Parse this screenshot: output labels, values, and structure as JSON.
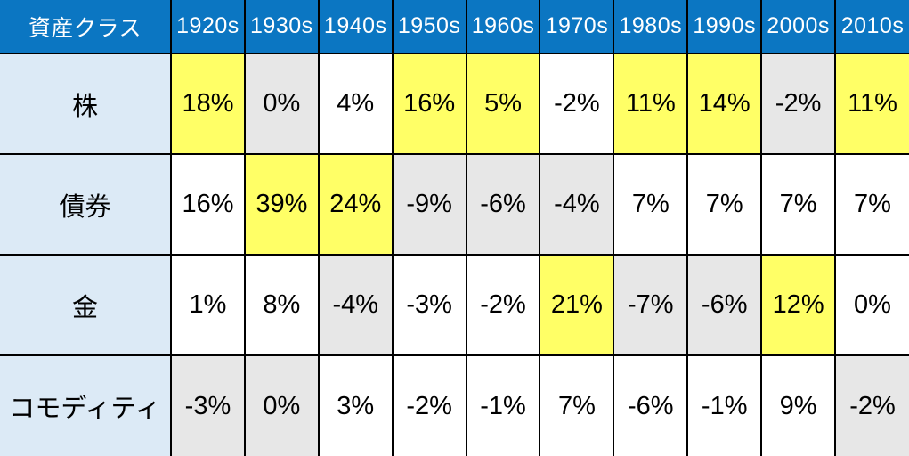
{
  "table": {
    "header": {
      "label": "資産クラス",
      "decades": [
        "1920s",
        "1930s",
        "1940s",
        "1950s",
        "1960s",
        "1970s",
        "1980s",
        "1990s",
        "2000s",
        "2010s"
      ]
    },
    "rows": [
      {
        "label": "株",
        "cells": [
          {
            "text": "18%",
            "hl": "best"
          },
          {
            "text": "0%",
            "hl": "worst"
          },
          {
            "text": "4%",
            "hl": "none"
          },
          {
            "text": "16%",
            "hl": "best"
          },
          {
            "text": "5%",
            "hl": "best"
          },
          {
            "text": "-2%",
            "hl": "none"
          },
          {
            "text": "11%",
            "hl": "best"
          },
          {
            "text": "14%",
            "hl": "best"
          },
          {
            "text": "-2%",
            "hl": "worst"
          },
          {
            "text": "11%",
            "hl": "best"
          }
        ]
      },
      {
        "label": "債券",
        "cells": [
          {
            "text": "16%",
            "hl": "none"
          },
          {
            "text": "39%",
            "hl": "best"
          },
          {
            "text": "24%",
            "hl": "best"
          },
          {
            "text": "-9%",
            "hl": "worst"
          },
          {
            "text": "-6%",
            "hl": "worst"
          },
          {
            "text": "-4%",
            "hl": "worst"
          },
          {
            "text": "7%",
            "hl": "none"
          },
          {
            "text": "7%",
            "hl": "none"
          },
          {
            "text": "7%",
            "hl": "none"
          },
          {
            "text": "7%",
            "hl": "none"
          }
        ]
      },
      {
        "label": "金",
        "cells": [
          {
            "text": "1%",
            "hl": "none"
          },
          {
            "text": "8%",
            "hl": "none"
          },
          {
            "text": "-4%",
            "hl": "worst"
          },
          {
            "text": "-3%",
            "hl": "none"
          },
          {
            "text": "-2%",
            "hl": "none"
          },
          {
            "text": "21%",
            "hl": "best"
          },
          {
            "text": "-7%",
            "hl": "worst"
          },
          {
            "text": "-6%",
            "hl": "worst"
          },
          {
            "text": "12%",
            "hl": "best"
          },
          {
            "text": "0%",
            "hl": "none"
          }
        ]
      },
      {
        "label": "コモディティ",
        "cells": [
          {
            "text": "-3%",
            "hl": "worst"
          },
          {
            "text": "0%",
            "hl": "worst"
          },
          {
            "text": "3%",
            "hl": "none"
          },
          {
            "text": "-2%",
            "hl": "none"
          },
          {
            "text": "-1%",
            "hl": "none"
          },
          {
            "text": "7%",
            "hl": "none"
          },
          {
            "text": "-6%",
            "hl": "none"
          },
          {
            "text": "-1%",
            "hl": "none"
          },
          {
            "text": "9%",
            "hl": "none"
          },
          {
            "text": "-2%",
            "hl": "worst"
          }
        ]
      }
    ]
  },
  "colors": {
    "header_bg": "#0b76c2",
    "header_text": "#ffffff",
    "row_label_bg": "#dceaf6",
    "best_bg": "#ffff66",
    "worst_bg": "#e7e7e7",
    "normal_bg": "#ffffff",
    "border": "#000000",
    "body_text": "#000000"
  },
  "chart_data": {
    "type": "table",
    "title": "",
    "row_header_label": "資産クラス",
    "categories": [
      "1920s",
      "1930s",
      "1940s",
      "1950s",
      "1960s",
      "1970s",
      "1980s",
      "1990s",
      "2000s",
      "2010s"
    ],
    "series": [
      {
        "name": "株",
        "values": [
          18,
          0,
          4,
          16,
          5,
          -2,
          11,
          14,
          -2,
          11
        ]
      },
      {
        "name": "債券",
        "values": [
          16,
          39,
          24,
          -9,
          -6,
          -4,
          7,
          7,
          7,
          7
        ]
      },
      {
        "name": "金",
        "values": [
          1,
          8,
          -4,
          -3,
          -2,
          21,
          -7,
          -6,
          12,
          0
        ]
      },
      {
        "name": "コモディティ",
        "values": [
          -3,
          0,
          3,
          -2,
          -1,
          7,
          -6,
          -1,
          9,
          -2
        ]
      }
    ],
    "unit": "%",
    "highlight_best_cells": [
      [
        "株",
        "1920s"
      ],
      [
        "債券",
        "1930s"
      ],
      [
        "債券",
        "1940s"
      ],
      [
        "株",
        "1950s"
      ],
      [
        "株",
        "1960s"
      ],
      [
        "金",
        "1970s"
      ],
      [
        "株",
        "1980s"
      ],
      [
        "株",
        "1990s"
      ],
      [
        "金",
        "2000s"
      ],
      [
        "株",
        "2010s"
      ]
    ],
    "highlight_worst_cells": [
      [
        "コモディティ",
        "1920s"
      ],
      [
        "株",
        "1930s"
      ],
      [
        "コモディティ",
        "1930s"
      ],
      [
        "金",
        "1940s"
      ],
      [
        "債券",
        "1950s"
      ],
      [
        "債券",
        "1960s"
      ],
      [
        "債券",
        "1970s"
      ],
      [
        "金",
        "1980s"
      ],
      [
        "金",
        "1990s"
      ],
      [
        "株",
        "2000s"
      ],
      [
        "コモディティ",
        "2010s"
      ]
    ]
  }
}
